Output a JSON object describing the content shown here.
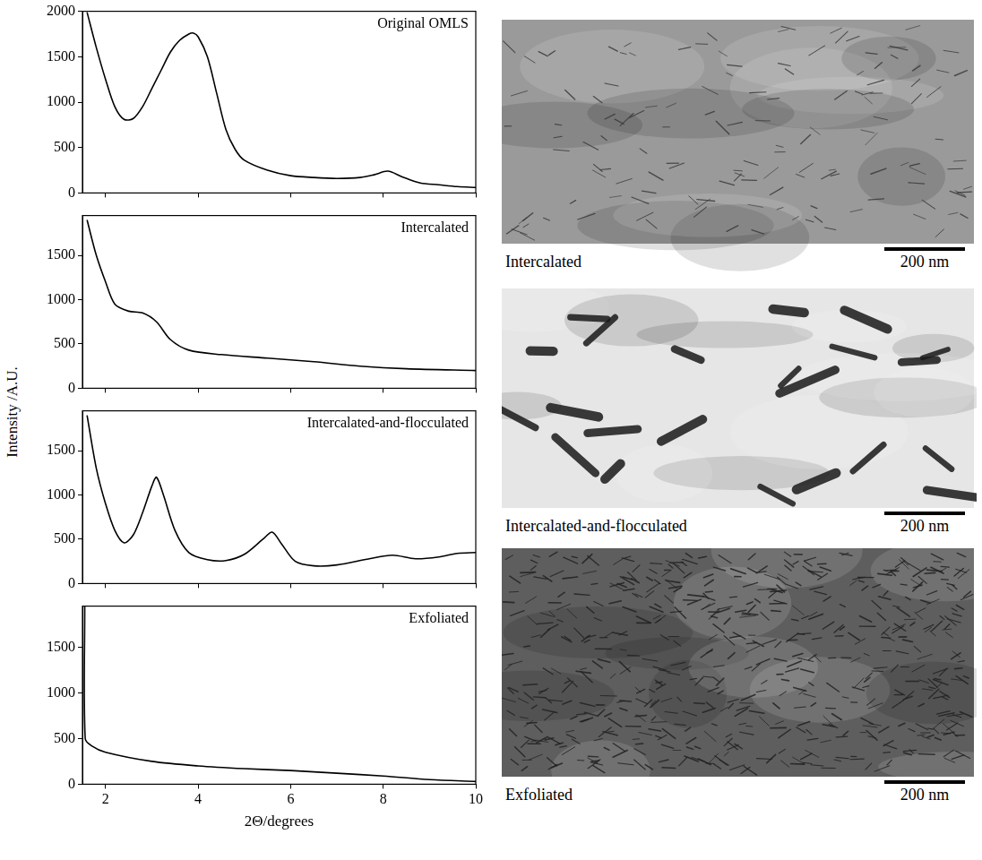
{
  "chart_data": [
    {
      "type": "line",
      "title": "Original OMLS",
      "color": "#000000",
      "tick_labels": "y",
      "x": [
        1.6,
        1.8,
        2.0,
        2.2,
        2.4,
        2.6,
        2.8,
        3.0,
        3.2,
        3.4,
        3.6,
        3.8,
        3.9,
        4.0,
        4.2,
        4.4,
        4.6,
        4.8,
        5.0,
        5.5,
        6.0,
        6.5,
        7.0,
        7.5,
        7.8,
        8.1,
        8.4,
        8.8,
        9.2,
        9.6,
        10.0
      ],
      "values": [
        1990,
        1600,
        1250,
        950,
        810,
        820,
        950,
        1150,
        1350,
        1550,
        1680,
        1750,
        1760,
        1720,
        1500,
        1100,
        700,
        480,
        360,
        250,
        190,
        170,
        160,
        170,
        200,
        240,
        180,
        110,
        90,
        70,
        60
      ],
      "xlim": [
        1.5,
        10
      ],
      "xticks": [
        2,
        4,
        6,
        8,
        10
      ],
      "ylim": [
        0,
        2000
      ],
      "yticks": [
        0,
        500,
        1000,
        1500,
        2000
      ],
      "grid": false
    },
    {
      "type": "line",
      "title": "Intercalated",
      "color": "#000000",
      "tick_labels": "y",
      "x": [
        1.6,
        1.8,
        2.0,
        2.2,
        2.5,
        2.8,
        3.1,
        3.4,
        3.8,
        4.5,
        5.5,
        6.5,
        7.5,
        8.5,
        10.0
      ],
      "values": [
        1900,
        1500,
        1200,
        950,
        870,
        850,
        750,
        550,
        430,
        380,
        340,
        300,
        250,
        220,
        200
      ],
      "xlim": [
        1.5,
        10
      ],
      "xticks": [
        2,
        4,
        6,
        8,
        10
      ],
      "ylim": [
        0,
        1950
      ],
      "yticks": [
        0,
        500,
        1000,
        1500
      ],
      "grid": false
    },
    {
      "type": "line",
      "title": "Intercalated-and-flocculated",
      "color": "#000000",
      "tick_labels": "y",
      "x": [
        1.6,
        1.8,
        2.0,
        2.2,
        2.4,
        2.6,
        2.8,
        3.0,
        3.1,
        3.25,
        3.5,
        3.8,
        4.2,
        4.6,
        5.0,
        5.4,
        5.6,
        5.8,
        6.1,
        6.5,
        7.0,
        7.7,
        8.2,
        8.7,
        9.2,
        9.6,
        10.0
      ],
      "values": [
        1900,
        1300,
        900,
        600,
        460,
        550,
        800,
        1100,
        1200,
        1000,
        600,
        350,
        270,
        260,
        330,
        500,
        580,
        450,
        250,
        200,
        210,
        280,
        320,
        280,
        300,
        340,
        350
      ],
      "xlim": [
        1.5,
        10
      ],
      "xticks": [
        2,
        4,
        6,
        8,
        10
      ],
      "ylim": [
        0,
        1950
      ],
      "yticks": [
        0,
        500,
        1000,
        1500
      ],
      "grid": false
    },
    {
      "type": "line",
      "title": "Exfoliated",
      "color": "#000000",
      "xlabel": "2Θ/degrees",
      "x": [
        1.55,
        1.56,
        1.7,
        2.0,
        3.0,
        4.0,
        5.0,
        6.0,
        7.0,
        8.0,
        9.0,
        10.0
      ],
      "values": [
        1950,
        500,
        420,
        350,
        250,
        200,
        170,
        150,
        120,
        90,
        50,
        30
      ],
      "xlim": [
        1.5,
        10
      ],
      "xticks": [
        2,
        4,
        6,
        8,
        10
      ],
      "ylim": [
        0,
        1950
      ],
      "yticks": [
        0,
        500,
        1000,
        1500
      ],
      "grid": false
    }
  ],
  "ylabel": "Intensity /A.U.",
  "images": [
    {
      "caption": "Intercalated",
      "scale_bar": "200 nm"
    },
    {
      "caption": "Intercalated-and-flocculated",
      "scale_bar": "200 nm"
    },
    {
      "caption": "Exfoliated",
      "scale_bar": "200 nm"
    }
  ]
}
